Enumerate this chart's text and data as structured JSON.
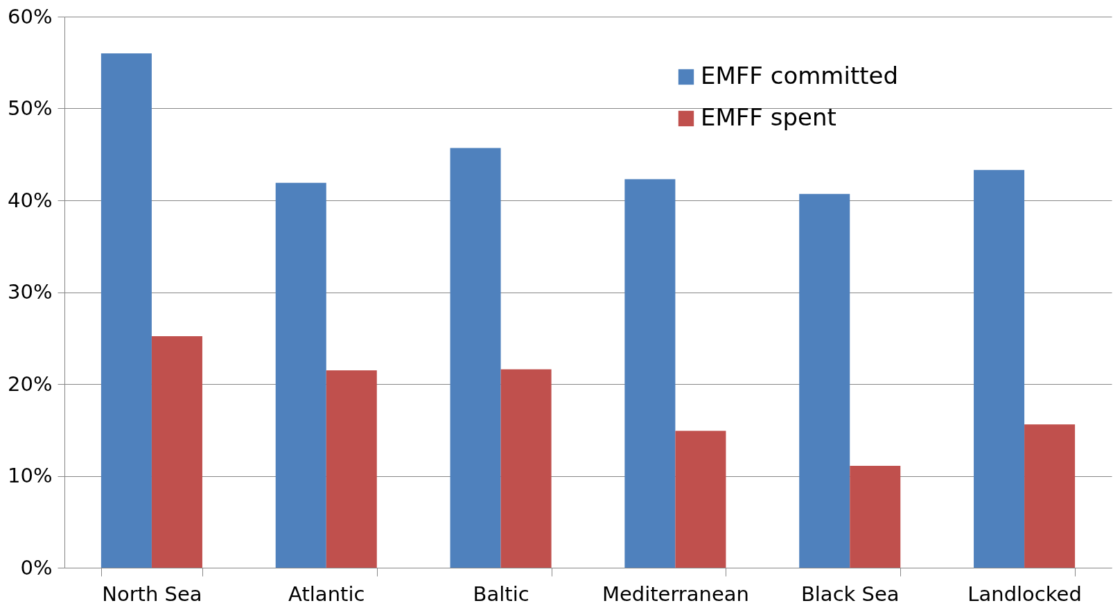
{
  "chart_data": {
    "type": "bar",
    "categories": [
      "North Sea",
      "Atlantic",
      "Baltic",
      "Mediterranean",
      "Black Sea",
      "Landlocked"
    ],
    "series": [
      {
        "name": "EMFF committed",
        "color": "#4f81bd",
        "values": [
          56.0,
          41.9,
          45.7,
          42.3,
          40.7,
          43.3
        ]
      },
      {
        "name": "EMFF spent",
        "color": "#c0504d",
        "values": [
          25.2,
          21.5,
          21.6,
          14.9,
          11.1,
          15.6
        ]
      }
    ],
    "ylim": [
      0,
      60
    ],
    "yticks": [
      {
        "value": 0,
        "label": "0%"
      },
      {
        "value": 10,
        "label": "10%"
      },
      {
        "value": 20,
        "label": "20%"
      },
      {
        "value": 30,
        "label": "30%"
      },
      {
        "value": 40,
        "label": "40%"
      },
      {
        "value": 50,
        "label": "50%"
      },
      {
        "value": 60,
        "label": "60%"
      }
    ],
    "grid": "y",
    "legend": "top right"
  }
}
